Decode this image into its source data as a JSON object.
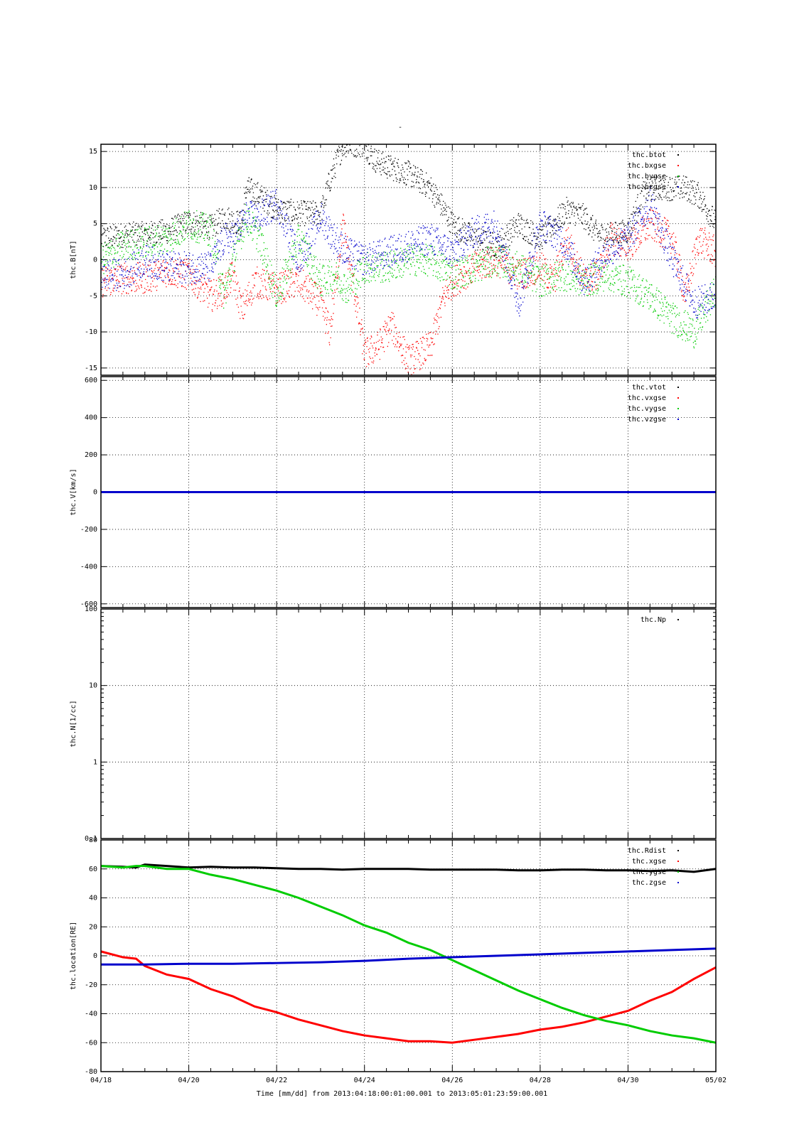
{
  "title": "-",
  "time_label": "Time [mm/dd]  from 2013:04:18:00:01:00.001  to  2013:05:01:23:59:00.001",
  "x_ticks": [
    "04/18",
    "04/20",
    "04/22",
    "04/24",
    "04/26",
    "04/28",
    "04/30",
    "05/02"
  ],
  "x_range_days": [
    0,
    14
  ],
  "chart_data": [
    {
      "type": "scatter",
      "ylabel": "thc.B[nT]",
      "ylim": [
        -16,
        16
      ],
      "y_ticks": [
        -15,
        -10,
        -5,
        0,
        5,
        10,
        15
      ],
      "y_tick_labels": [
        "-15",
        "-10",
        "-5",
        "0",
        "5",
        "10",
        "15"
      ],
      "log": false,
      "grid": true,
      "legend_position": "top-right",
      "series": [
        {
          "name": "thc.btot",
          "color": "#000000",
          "noise": 0.8,
          "x": [
            0,
            0.5,
            1,
            1.5,
            2,
            2.5,
            2.8,
            3.2,
            3.3,
            3.6,
            4,
            4.5,
            5,
            5.2,
            5.5,
            6,
            6.2,
            6.5,
            7,
            7.5,
            8,
            8.5,
            9,
            9.5,
            10,
            10.3,
            10.6,
            11,
            11.3,
            11.6,
            12,
            12.3,
            12.6,
            13,
            13.3,
            13.6,
            14
          ],
          "y": [
            3,
            3.5,
            3.6,
            4,
            5.3,
            4.5,
            6,
            5,
            10,
            9,
            7,
            6.5,
            6.5,
            11,
            16,
            16,
            14,
            13,
            12,
            10,
            5,
            3,
            2,
            5,
            3,
            5,
            7,
            6,
            3.5,
            3.5,
            4,
            9,
            10,
            10,
            10,
            9,
            5
          ]
        },
        {
          "name": "thc.bxgse",
          "color": "#ff0000",
          "noise": 1.0,
          "x": [
            0,
            0.5,
            1,
            1.5,
            2,
            2.5,
            2.8,
            3,
            3.2,
            3.5,
            4,
            4.5,
            5,
            5.2,
            5.5,
            6,
            6.3,
            6.6,
            7,
            7.5,
            7.8,
            8,
            8.5,
            9,
            9.5,
            10,
            10.3,
            10.6,
            11,
            11.3,
            11.6,
            12,
            12.5,
            13,
            13.3,
            13.6,
            14
          ],
          "y": [
            -3,
            -2.5,
            -2.5,
            -1.5,
            -2,
            -5,
            -4,
            -2,
            -7,
            -3,
            -4,
            -3,
            -6,
            -10,
            5,
            -13,
            -12,
            -9,
            -14,
            -12,
            -5,
            -3,
            -1,
            0,
            -2,
            -1,
            -3,
            3,
            -3,
            -2,
            3,
            2,
            5,
            3,
            -5,
            3,
            1
          ]
        },
        {
          "name": "thc.bygse",
          "color": "#00cc00",
          "noise": 1.0,
          "x": [
            0,
            0.5,
            1,
            1.5,
            2,
            2.5,
            2.8,
            3,
            3.3,
            3.6,
            4,
            4.5,
            5,
            5.3,
            5.6,
            6,
            6.5,
            7,
            7.5,
            8,
            8.5,
            9,
            9.5,
            10,
            10.5,
            11,
            11.5,
            12,
            12.5,
            13,
            13.5,
            14
          ],
          "y": [
            0,
            2,
            2.5,
            3,
            5,
            4,
            -5,
            0,
            6,
            3,
            -5,
            3,
            -3,
            -2,
            -4,
            -1,
            -1,
            0,
            0,
            -2,
            -1,
            0,
            -1,
            -3,
            -2,
            -3,
            -2,
            -3,
            -5,
            -8,
            -10,
            -4
          ]
        },
        {
          "name": "thc.bzgse",
          "color": "#0000cc",
          "noise": 1.0,
          "x": [
            0,
            0.5,
            1,
            1.5,
            2,
            2.5,
            2.8,
            3,
            3.3,
            3.6,
            4,
            4.5,
            5,
            5.3,
            5.6,
            6,
            6.5,
            7,
            7.5,
            8,
            8.5,
            9,
            9.5,
            10,
            10.5,
            11,
            11.5,
            12,
            12.5,
            13,
            13.5,
            14
          ],
          "y": [
            -2,
            -2,
            0,
            -1,
            -1,
            -1,
            3,
            3,
            6,
            6,
            8,
            0,
            6,
            3,
            1,
            0,
            1,
            2,
            3,
            1,
            4,
            5,
            -6,
            5,
            3,
            -3,
            1,
            3,
            8,
            0,
            -6,
            -5
          ]
        }
      ]
    },
    {
      "type": "scatter",
      "ylabel": "thc.V[km/s]",
      "ylim": [
        -620,
        620
      ],
      "y_ticks": [
        -600,
        -400,
        -200,
        0,
        200,
        400,
        600
      ],
      "y_tick_labels": [
        "-600",
        "-400",
        "-200",
        "0",
        "200",
        "400",
        "600"
      ],
      "log": false,
      "grid": true,
      "legend_position": "top-right",
      "series": [
        {
          "name": "thc.vtot",
          "color": "#000000",
          "noise": 0,
          "x": [
            0,
            14
          ],
          "y": [
            0,
            0
          ]
        },
        {
          "name": "thc.vxgse",
          "color": "#ff0000",
          "noise": 0,
          "x": [
            0,
            14
          ],
          "y": [
            0,
            0
          ]
        },
        {
          "name": "thc.vygse",
          "color": "#00cc00",
          "noise": 0,
          "x": [
            0,
            14
          ],
          "y": [
            0,
            0
          ]
        },
        {
          "name": "thc.vzgse",
          "color": "#0000cc",
          "noise": 0,
          "x": [
            0,
            14
          ],
          "y": [
            0,
            0
          ]
        }
      ]
    },
    {
      "type": "scatter",
      "ylabel": "thc.N[1/cc]",
      "ylim": [
        0.1,
        100
      ],
      "y_ticks": [
        0.1,
        1,
        10,
        100
      ],
      "y_tick_labels": [
        "0.1",
        "1",
        "10",
        "100"
      ],
      "log": true,
      "grid": true,
      "legend_position": "top-right",
      "series": [
        {
          "name": "thc.Np",
          "color": "#000000",
          "noise": 0,
          "x": [],
          "y": []
        }
      ]
    },
    {
      "type": "line",
      "ylabel": "thc.location[RE]",
      "ylim": [
        -80,
        80
      ],
      "y_ticks": [
        -80,
        -60,
        -40,
        -20,
        0,
        20,
        40,
        60,
        80
      ],
      "y_tick_labels": [
        "-80",
        "-60",
        "-40",
        "-20",
        "0",
        "20",
        "40",
        "60",
        "80"
      ],
      "log": false,
      "grid": true,
      "legend_position": "top-right",
      "series": [
        {
          "name": "thc.Rdist",
          "color": "#000000",
          "noise": 0,
          "x": [
            0,
            0.5,
            0.8,
            1,
            1.5,
            2,
            2.5,
            3,
            3.5,
            4,
            4.5,
            5,
            5.5,
            6,
            6.5,
            7,
            7.5,
            8,
            8.5,
            9,
            9.5,
            10,
            10.5,
            11,
            11.5,
            12,
            12.5,
            13,
            13.5,
            14
          ],
          "y": [
            62,
            61.5,
            61,
            63,
            62,
            61,
            61.5,
            61,
            61,
            60.5,
            60,
            60,
            59.5,
            60,
            60,
            60,
            59.5,
            59.5,
            59.5,
            59.5,
            59,
            59,
            59.5,
            59.5,
            59,
            59,
            58.5,
            59,
            58,
            60
          ]
        },
        {
          "name": "thc.xgse",
          "color": "#ff0000",
          "noise": 0,
          "x": [
            0,
            0.5,
            0.8,
            1,
            1.5,
            2,
            2.5,
            3,
            3.5,
            4,
            4.5,
            5,
            5.5,
            6,
            6.5,
            7,
            7.5,
            8,
            8.5,
            9,
            9.5,
            10,
            10.5,
            11,
            11.5,
            12,
            12.5,
            13,
            13.5,
            14
          ],
          "y": [
            3,
            -1,
            -2,
            -7,
            -13,
            -16,
            -23,
            -28,
            -35,
            -39,
            -44,
            -48,
            -52,
            -55,
            -57,
            -59,
            -59,
            -60,
            -58,
            -56,
            -54,
            -51,
            -49,
            -46,
            -42,
            -38,
            -31,
            -25,
            -16,
            -8
          ]
        },
        {
          "name": "thc.ygse",
          "color": "#00cc00",
          "noise": 0,
          "x": [
            0,
            0.5,
            0.8,
            1,
            1.5,
            2,
            2.5,
            3,
            3.5,
            4,
            4.5,
            5,
            5.5,
            6,
            6.5,
            7,
            7.5,
            8,
            8.5,
            9,
            9.5,
            10,
            10.5,
            11,
            11.5,
            12,
            12.5,
            13,
            13.5,
            14
          ],
          "y": [
            62,
            61,
            62,
            62,
            60,
            60,
            56,
            53,
            49,
            45,
            40,
            34,
            28,
            21,
            16,
            9,
            4,
            -3,
            -10,
            -17,
            -24,
            -30,
            -36,
            -41,
            -45,
            -48,
            -52,
            -55,
            -57,
            -60
          ]
        },
        {
          "name": "thc.zgse",
          "color": "#0000cc",
          "noise": 0,
          "x": [
            0,
            1,
            2,
            3,
            4,
            5,
            6,
            7,
            8,
            9,
            10,
            11,
            12,
            13,
            14
          ],
          "y": [
            -6,
            -6,
            -5.5,
            -5.5,
            -5,
            -4.5,
            -3.5,
            -2,
            -1,
            0,
            1,
            2,
            3,
            4,
            5
          ]
        }
      ]
    }
  ]
}
